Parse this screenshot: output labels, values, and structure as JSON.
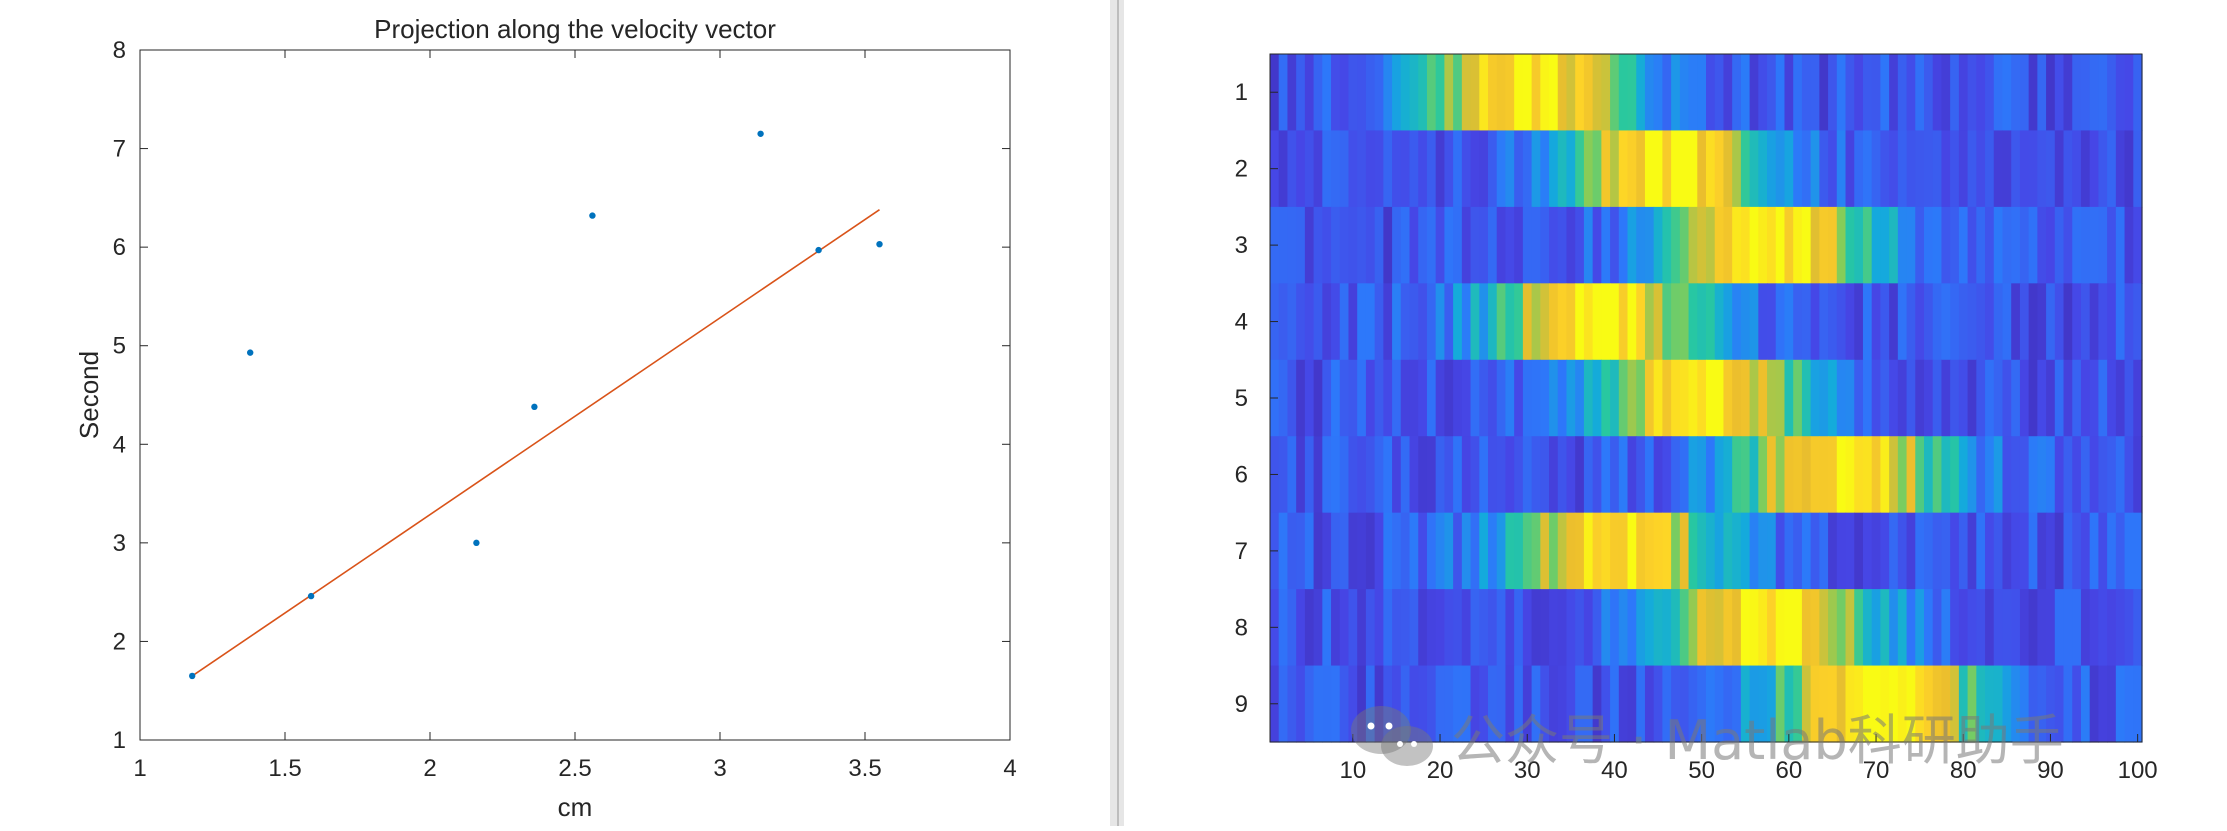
{
  "chart_data": [
    {
      "type": "scatter",
      "title": "Projection along the velocity vector",
      "xlabel": "cm",
      "ylabel": "Second",
      "xlim": [
        1,
        4
      ],
      "ylim": [
        1,
        8
      ],
      "xticks": [
        "1",
        "1.5",
        "2",
        "2.5",
        "3",
        "3.5",
        "4"
      ],
      "yticks": [
        "1",
        "2",
        "3",
        "4",
        "5",
        "6",
        "7",
        "8"
      ],
      "grid": false,
      "series": [
        {
          "type": "scatter",
          "color": "#0072BD",
          "x": [
            1.18,
            1.38,
            1.59,
            2.16,
            2.36,
            2.56,
            3.14,
            3.34,
            3.55
          ],
          "y": [
            1.65,
            4.93,
            2.46,
            3.0,
            4.38,
            6.32,
            7.15,
            5.97,
            6.03
          ]
        },
        {
          "type": "line",
          "color": "#D95319",
          "x": [
            1.18,
            3.55
          ],
          "y": [
            1.65,
            6.38
          ]
        }
      ]
    },
    {
      "type": "heatmap",
      "xticks": [
        "10",
        "20",
        "30",
        "40",
        "50",
        "60",
        "70",
        "80",
        "90",
        "100"
      ],
      "yticks": [
        "1",
        "2",
        "3",
        "4",
        "5",
        "6",
        "7",
        "8",
        "9"
      ],
      "xlim": [
        0.5,
        100.5
      ],
      "ylim": [
        0.5,
        9.5
      ],
      "colormap": "parula",
      "rows": 9,
      "cols": 100,
      "peak_centers": [
        30,
        46,
        58,
        38,
        50,
        66,
        40,
        58,
        70
      ]
    }
  ],
  "watermark": {
    "text": "公众号 · Matlab科研助手"
  }
}
